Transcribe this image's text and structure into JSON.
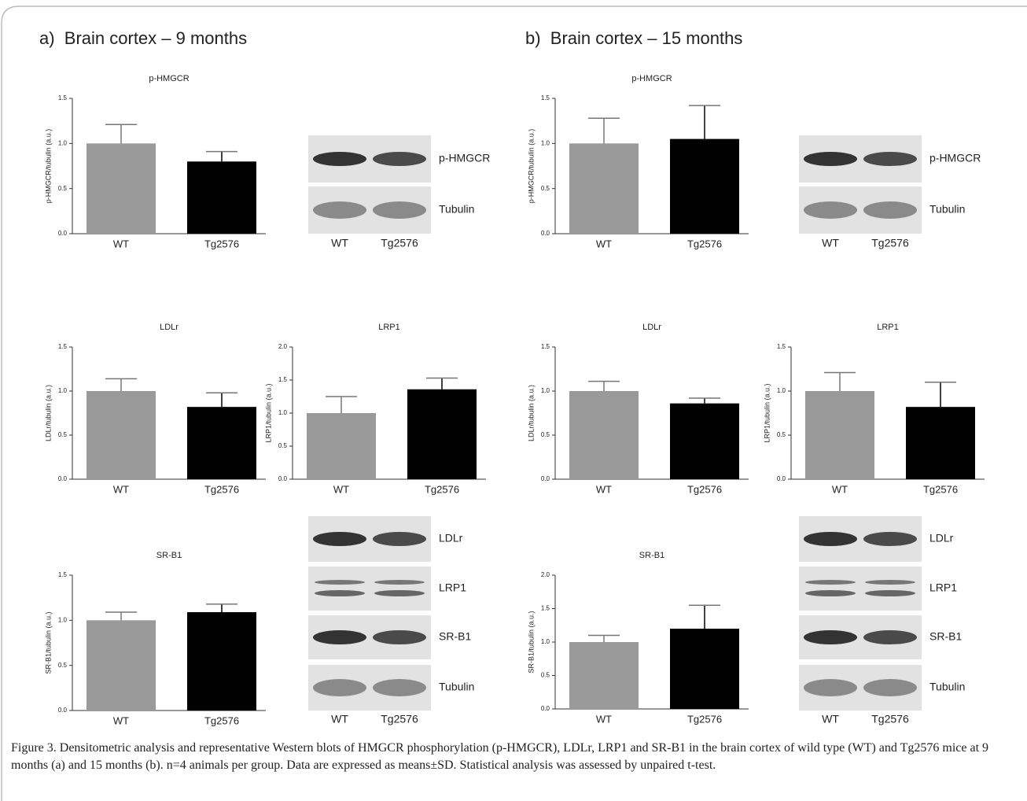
{
  "panels": [
    "a)  Brain cortex – 9 months",
    "b)  Brain cortex – 15 months"
  ],
  "chart_data": [
    {
      "type": "bar",
      "title": "p-HMGCR",
      "y_label": "p-HMGCR/tubulin (a.u.)",
      "categories": [
        "WT",
        "Tg2576"
      ],
      "values": [
        1.0,
        0.8
      ],
      "errors": [
        0.21,
        0.11
      ],
      "colors": [
        "#999999",
        "#000000"
      ],
      "ylim": [
        0,
        1.5
      ],
      "yticks": [
        {
          "value": 0,
          "label": "0.0"
        },
        {
          "value": 0.5,
          "label": "0.5"
        },
        {
          "value": 1,
          "label": "1.0"
        },
        {
          "value": 1.5,
          "label": "1.5"
        }
      ]
    },
    {
      "type": "bar",
      "title": "LDLr",
      "y_label": "LDLr/tubulin (a.u.)",
      "categories": [
        "WT",
        "Tg2576"
      ],
      "values": [
        1.0,
        0.82
      ],
      "errors": [
        0.14,
        0.16
      ],
      "colors": [
        "#999999",
        "#000000"
      ],
      "ylim": [
        0,
        1.5
      ],
      "yticks": [
        {
          "value": 0,
          "label": "0.0"
        },
        {
          "value": 0.5,
          "label": "0.5"
        },
        {
          "value": 1,
          "label": "1.0"
        },
        {
          "value": 1.5,
          "label": "1.5"
        }
      ]
    },
    {
      "type": "bar",
      "title": "LRP1",
      "y_label": "LRP1/tubulin (a.u.)",
      "categories": [
        "WT",
        "Tg2576"
      ],
      "values": [
        1.0,
        1.36
      ],
      "errors": [
        0.25,
        0.17
      ],
      "colors": [
        "#999999",
        "#000000"
      ],
      "ylim": [
        0,
        2
      ],
      "yticks": [
        {
          "value": 0,
          "label": "0.0"
        },
        {
          "value": 0.5,
          "label": "0.5"
        },
        {
          "value": 1,
          "label": "1.0"
        },
        {
          "value": 1.5,
          "label": "1.5"
        },
        {
          "value": 2,
          "label": "2.0"
        }
      ]
    },
    {
      "type": "bar",
      "title": "SR-B1",
      "y_label": "SR-B1/tubulin (a.u.)",
      "categories": [
        "WT",
        "Tg2576"
      ],
      "values": [
        1.0,
        1.09
      ],
      "errors": [
        0.09,
        0.09
      ],
      "colors": [
        "#999999",
        "#000000"
      ],
      "ylim": [
        0,
        1.5
      ],
      "yticks": [
        {
          "value": 0,
          "label": "0.0"
        },
        {
          "value": 0.5,
          "label": "0.5"
        },
        {
          "value": 1,
          "label": "1.0"
        },
        {
          "value": 1.5,
          "label": "1.5"
        }
      ]
    },
    {
      "type": "bar",
      "title": "p-HMGCR",
      "y_label": "p-HMGCR/tubulin (a.u.)",
      "categories": [
        "WT",
        "Tg2576"
      ],
      "values": [
        1.0,
        1.05
      ],
      "errors": [
        0.28,
        0.37
      ],
      "colors": [
        "#999999",
        "#000000"
      ],
      "ylim": [
        0,
        1.5
      ],
      "yticks": [
        {
          "value": 0,
          "label": "0.0"
        },
        {
          "value": 0.5,
          "label": "0.5"
        },
        {
          "value": 1,
          "label": "1.0"
        },
        {
          "value": 1.5,
          "label": "1.5"
        }
      ]
    },
    {
      "type": "bar",
      "title": "LDLr",
      "y_label": "LDLr/tubulin (a.u.)",
      "categories": [
        "WT",
        "Tg2576"
      ],
      "values": [
        1.0,
        0.86
      ],
      "errors": [
        0.11,
        0.06
      ],
      "colors": [
        "#999999",
        "#000000"
      ],
      "ylim": [
        0,
        1.5
      ],
      "yticks": [
        {
          "value": 0,
          "label": "0.0"
        },
        {
          "value": 0.5,
          "label": "0.5"
        },
        {
          "value": 1,
          "label": "1.0"
        },
        {
          "value": 1.5,
          "label": "1.5"
        }
      ]
    },
    {
      "type": "bar",
      "title": "LRP1",
      "y_label": "LRP1/tubulin (a.u.)",
      "categories": [
        "WT",
        "Tg2576"
      ],
      "values": [
        1.0,
        0.82
      ],
      "errors": [
        0.21,
        0.28
      ],
      "colors": [
        "#999999",
        "#000000"
      ],
      "ylim": [
        0,
        1.5
      ],
      "yticks": [
        {
          "value": 0,
          "label": "0.0"
        },
        {
          "value": 0.5,
          "label": "0.5"
        },
        {
          "value": 1,
          "label": "1.0"
        },
        {
          "value": 1.5,
          "label": "1.5"
        }
      ]
    },
    {
      "type": "bar",
      "title": "SR-B1",
      "y_label": "SR-B1/tubulin (a.u.)",
      "categories": [
        "WT",
        "Tg2576"
      ],
      "values": [
        1.0,
        1.2
      ],
      "errors": [
        0.1,
        0.35
      ],
      "colors": [
        "#999999",
        "#000000"
      ],
      "ylim": [
        0,
        2
      ],
      "yticks": [
        {
          "value": 0,
          "label": "0.0"
        },
        {
          "value": 0.5,
          "label": "0.5"
        },
        {
          "value": 1,
          "label": "1.0"
        },
        {
          "value": 1.5,
          "label": "1.5"
        },
        {
          "value": 2,
          "label": "2.0"
        }
      ]
    }
  ],
  "blots": [
    {
      "rows": [
        "p-HMGCR",
        "Tubulin"
      ],
      "lanes": [
        "WT",
        "Tg2576"
      ]
    },
    {
      "rows": [
        "p-HMGCR",
        "Tubulin"
      ],
      "lanes": [
        "WT",
        "Tg2576"
      ]
    },
    {
      "rows": [
        "LDLr",
        "LRP1",
        "SR-B1",
        "Tubulin"
      ],
      "lanes": [
        "WT",
        "Tg2576"
      ]
    },
    {
      "rows": [
        "LDLr",
        "LRP1",
        "SR-B1",
        "Tubulin"
      ],
      "lanes": [
        "WT",
        "Tg2576"
      ]
    }
  ],
  "caption": "Figure 3. Densitometric analysis and representative Western blots of HMGCR phosphorylation (p-HMGCR), LDLr, LRP1 and SR-B1 in the brain cortex of wild type (WT) and Tg2576 mice at 9 months (a) and 15 months (b). n=4 animals per group. Data are expressed as means±SD. Statistical analysis was assessed by unpaired t-test."
}
